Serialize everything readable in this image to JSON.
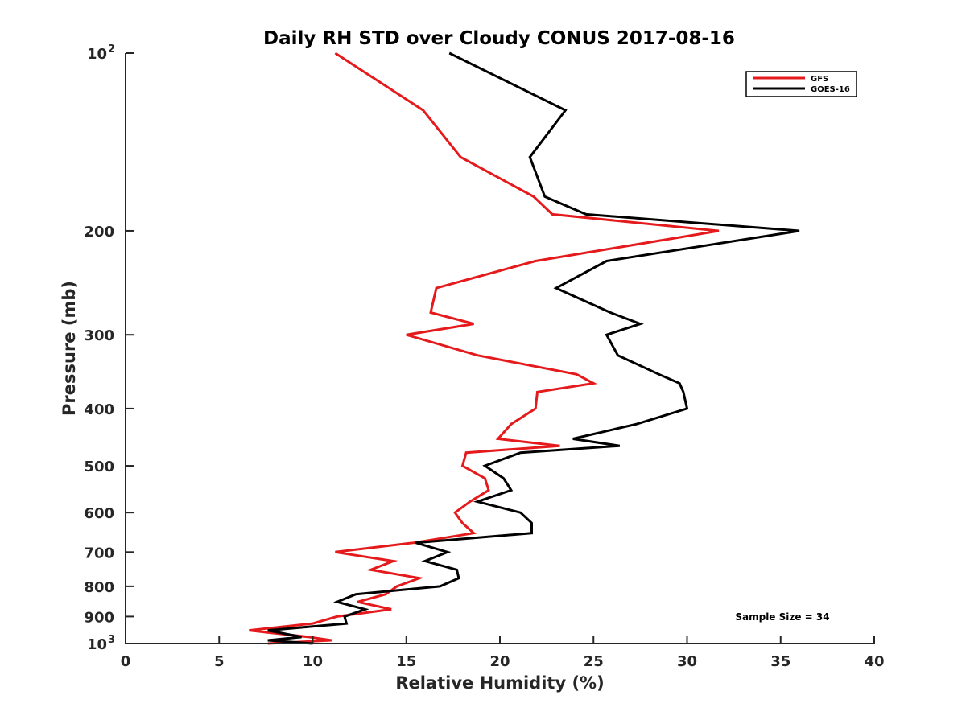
{
  "chart_data": {
    "type": "line",
    "title": "Daily RH STD over Cloudy CONUS 2017-08-16",
    "xlabel": "Relative Humidity (%)",
    "ylabel": "Pressure (mb)",
    "xlim": [
      0,
      40
    ],
    "ylim": [
      100,
      1000
    ],
    "y_scale": "log",
    "y_reversed": true,
    "x_ticks": [
      0,
      5,
      10,
      15,
      20,
      25,
      30,
      35,
      40
    ],
    "x_tick_labels": [
      "0",
      "5",
      "10",
      "15",
      "20",
      "25",
      "30",
      "35",
      "40"
    ],
    "y_ticks": [
      100,
      200,
      300,
      400,
      500,
      600,
      700,
      800,
      900,
      1000
    ],
    "y_tick_labels": [
      {
        "base": "10",
        "exp": "2"
      },
      {
        "base": "200",
        "exp": ""
      },
      {
        "base": "300",
        "exp": ""
      },
      {
        "base": "400",
        "exp": ""
      },
      {
        "base": "500",
        "exp": ""
      },
      {
        "base": "600",
        "exp": ""
      },
      {
        "base": "700",
        "exp": ""
      },
      {
        "base": "800",
        "exp": ""
      },
      {
        "base": "900",
        "exp": ""
      },
      {
        "base": "10",
        "exp": "3"
      }
    ],
    "grid": false,
    "legend_position": "top-right",
    "annotation": "Sample Size = 34",
    "series": [
      {
        "name": "GFS",
        "color": "#e41a1c",
        "points": [
          [
            11.2,
            100
          ],
          [
            15.9,
            125
          ],
          [
            17.9,
            150
          ],
          [
            21.8,
            175
          ],
          [
            22.8,
            187.5
          ],
          [
            31.7,
            200
          ],
          [
            21.9,
            225
          ],
          [
            16.6,
            250
          ],
          [
            16.3,
            275
          ],
          [
            18.6,
            287.5
          ],
          [
            15.0,
            300
          ],
          [
            18.8,
            325
          ],
          [
            24.1,
            350
          ],
          [
            25.0,
            362.5
          ],
          [
            22.0,
            375
          ],
          [
            21.9,
            400
          ],
          [
            20.6,
            425
          ],
          [
            19.9,
            450
          ],
          [
            23.2,
            462.5
          ],
          [
            18.2,
            475
          ],
          [
            18.0,
            500
          ],
          [
            19.2,
            525
          ],
          [
            19.4,
            550
          ],
          [
            18.4,
            575
          ],
          [
            17.6,
            600
          ],
          [
            18.0,
            625
          ],
          [
            18.6,
            650
          ],
          [
            15.4,
            675
          ],
          [
            11.2,
            700
          ],
          [
            14.3,
            725
          ],
          [
            13.1,
            750
          ],
          [
            15.7,
            775
          ],
          [
            14.5,
            800
          ],
          [
            13.9,
            825
          ],
          [
            12.4,
            850
          ],
          [
            14.2,
            875
          ],
          [
            11.3,
            900
          ],
          [
            10.0,
            925
          ],
          [
            6.6,
            950
          ],
          [
            9.8,
            975
          ],
          [
            11.0,
            987.5
          ],
          [
            7.6,
            1000
          ]
        ]
      },
      {
        "name": "GOES-16",
        "color": "#000000",
        "points": [
          [
            17.3,
            100
          ],
          [
            23.5,
            125
          ],
          [
            21.6,
            150
          ],
          [
            22.4,
            175
          ],
          [
            24.6,
            187.5
          ],
          [
            36.0,
            200
          ],
          [
            25.7,
            225
          ],
          [
            23.0,
            250
          ],
          [
            25.9,
            275
          ],
          [
            27.5,
            287.5
          ],
          [
            25.7,
            300
          ],
          [
            26.3,
            325
          ],
          [
            28.5,
            350
          ],
          [
            29.6,
            362.5
          ],
          [
            29.8,
            375
          ],
          [
            30.0,
            400
          ],
          [
            27.3,
            425
          ],
          [
            23.9,
            450
          ],
          [
            26.4,
            462.5
          ],
          [
            21.1,
            475
          ],
          [
            19.2,
            500
          ],
          [
            20.2,
            525
          ],
          [
            20.6,
            550
          ],
          [
            18.8,
            575
          ],
          [
            21.1,
            600
          ],
          [
            21.7,
            625
          ],
          [
            21.7,
            650
          ],
          [
            15.5,
            675
          ],
          [
            17.2,
            700
          ],
          [
            16.0,
            725
          ],
          [
            17.7,
            750
          ],
          [
            17.8,
            775
          ],
          [
            16.8,
            800
          ],
          [
            12.3,
            825
          ],
          [
            11.3,
            850
          ],
          [
            12.8,
            875
          ],
          [
            11.7,
            900
          ],
          [
            11.8,
            925
          ],
          [
            7.6,
            950
          ],
          [
            9.4,
            975
          ],
          [
            7.6,
            987.5
          ],
          [
            10.0,
            1000
          ]
        ]
      }
    ]
  }
}
